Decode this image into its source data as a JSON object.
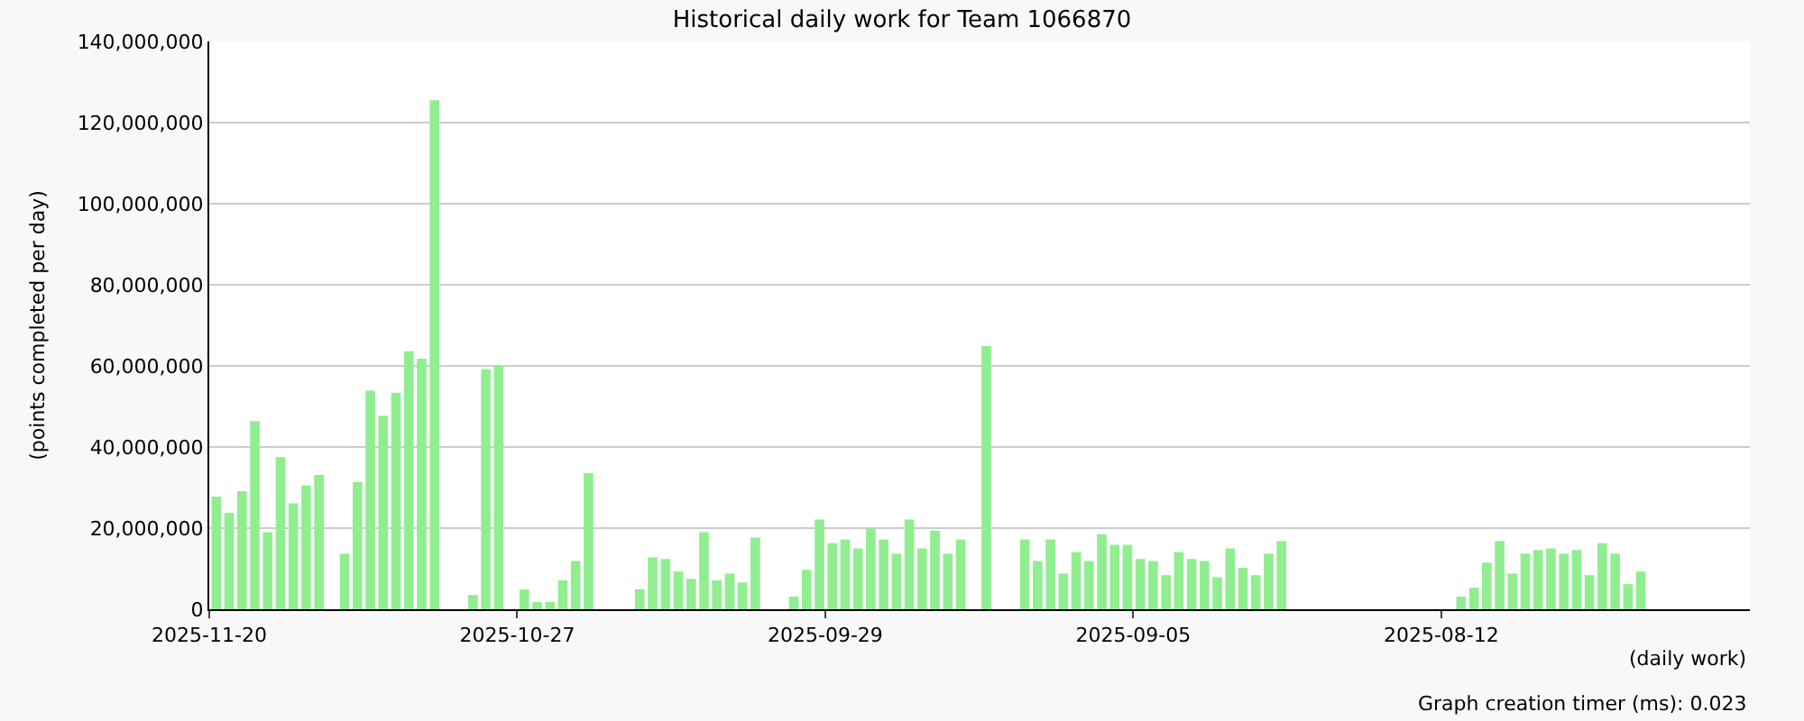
{
  "chart_data": {
    "type": "bar",
    "title": "Historical daily work for Team 1066870",
    "xlabel": "(daily work)",
    "ylabel": "(points completed per day)",
    "categories": [
      "2025-11-20",
      null,
      null,
      null,
      null,
      null,
      null,
      null,
      null,
      null,
      null,
      null,
      null,
      null,
      null,
      null,
      null,
      null,
      null,
      null,
      null,
      null,
      null,
      null,
      "2025-10-27",
      null,
      null,
      null,
      null,
      null,
      null,
      null,
      null,
      null,
      null,
      null,
      null,
      null,
      null,
      null,
      null,
      null,
      null,
      null,
      null,
      null,
      null,
      null,
      "2025-09-29",
      null,
      null,
      null,
      null,
      null,
      null,
      null,
      null,
      null,
      null,
      null,
      null,
      null,
      null,
      null,
      null,
      null,
      null,
      null,
      null,
      null,
      null,
      null,
      "2025-09-05",
      null,
      null,
      null,
      null,
      null,
      null,
      null,
      null,
      null,
      null,
      null,
      null,
      null,
      null,
      null,
      null,
      null,
      null,
      null,
      null,
      null,
      null,
      null,
      "2025-08-12",
      null,
      null,
      null,
      null,
      null,
      null,
      null,
      null,
      null,
      null,
      null,
      null,
      null,
      null,
      null,
      null,
      null,
      null,
      null,
      null,
      null,
      null,
      null
    ],
    "values": [
      27800000,
      23800000,
      29100000,
      46400000,
      19000000,
      37500000,
      26100000,
      30500000,
      33100000,
      null,
      13700000,
      31400000,
      53900000,
      47700000,
      53400000,
      63600000,
      61800000,
      125500000,
      null,
      null,
      3500000,
      59200000,
      60100000,
      null,
      4900000,
      1800000,
      1800000,
      7100000,
      11900000,
      33600000,
      null,
      null,
      null,
      4900000,
      12800000,
      12400000,
      9300000,
      7500000,
      19000000,
      7100000,
      8800000,
      6600000,
      17700000,
      null,
      null,
      3100000,
      9700000,
      22100000,
      16300000,
      17200000,
      15000000,
      19900000,
      17200000,
      13700000,
      22100000,
      15000000,
      19400000,
      13700000,
      17200000,
      null,
      64900000,
      null,
      null,
      17200000,
      11900000,
      17200000,
      8800000,
      14100000,
      11900000,
      18500000,
      15900000,
      15900000,
      12400000,
      11900000,
      8400000,
      14100000,
      12400000,
      11900000,
      7900000,
      15000000,
      10200000,
      8400000,
      13700000,
      16800000,
      null,
      null,
      null,
      null,
      null,
      null,
      null,
      null,
      null,
      null,
      null,
      null,
      null,
      3100000,
      5300000,
      11500000,
      16800000,
      8800000,
      13700000,
      14600000,
      15000000,
      13700000,
      14600000,
      8400000,
      16300000,
      13700000,
      6200000,
      9300000,
      null,
      null,
      null,
      null,
      null,
      null,
      null,
      null
    ],
    "color": "#90ee90",
    "ylim": [
      0,
      140000000
    ],
    "yticks": [
      {
        "value": 0,
        "label": "0"
      },
      {
        "value": 20000000,
        "label": "20,000,000"
      },
      {
        "value": 40000000,
        "label": "40,000,000"
      },
      {
        "value": 60000000,
        "label": "60,000,000"
      },
      {
        "value": 80000000,
        "label": "80,000,000"
      },
      {
        "value": 100000000,
        "label": "100,000,000"
      },
      {
        "value": 120000000,
        "label": "120,000,000"
      },
      {
        "value": 140000000,
        "label": "140,000,000"
      }
    ],
    "grid": "y",
    "annotations": [
      "Graph creation timer (ms): 0.023"
    ]
  }
}
